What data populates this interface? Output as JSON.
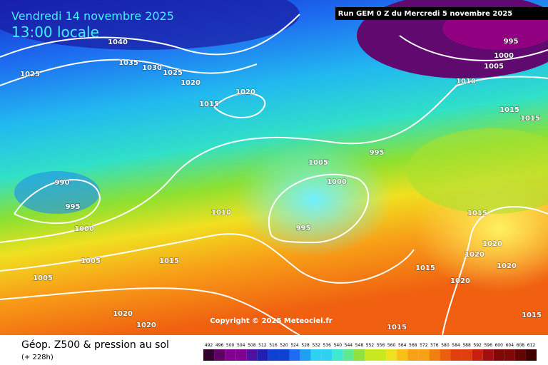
{
  "header": {
    "date": "Vendredi 14 novembre 2025",
    "time": "13:00 locale",
    "run": "Run GEM 0 Z du Mercredi 5 novembre 2025"
  },
  "isobars": [
    1040,
    1035,
    1030,
    1025,
    1025,
    1020,
    1015,
    1020,
    1010,
    1015,
    1015,
    995,
    1000,
    1005,
    995,
    1005,
    1000,
    990,
    995,
    1010,
    1000,
    995,
    1015,
    1020,
    1020,
    1020,
    1015,
    1020,
    1005,
    1015,
    1005,
    1015,
    1020,
    1020,
    1015
  ],
  "copyright": "Copyright © 2025 Meteociel.fr",
  "footer": {
    "title": "Géop. Z500 & pression au sol",
    "lead": "(+ 228h)"
  },
  "legend": {
    "values": [
      492,
      496,
      500,
      504,
      508,
      512,
      516,
      520,
      524,
      528,
      532,
      536,
      540,
      544,
      548,
      552,
      556,
      560,
      564,
      568,
      572,
      576,
      580,
      584,
      588,
      592,
      596,
      600,
      604,
      608,
      612
    ]
  }
}
